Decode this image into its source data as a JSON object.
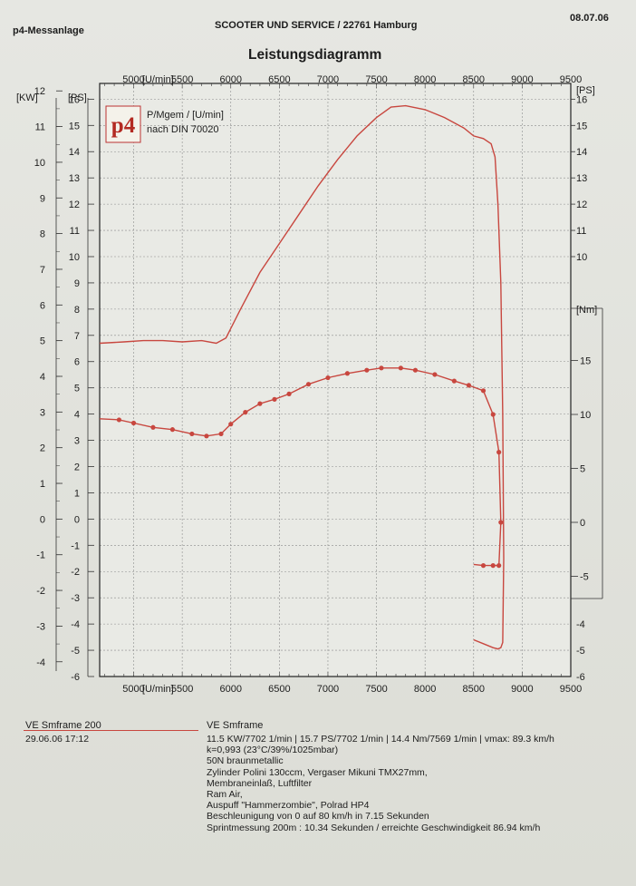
{
  "header": {
    "left": "p4-Messanlage",
    "center": "SCOOTER UND SERVICE / 22761 Hamburg",
    "date": "08.07.06",
    "title": "Leistungsdiagramm"
  },
  "legend_box": {
    "logo": "p4",
    "line1": "P/Mgem / [U/min]",
    "line2": "nach DIN 70020"
  },
  "chart_data": {
    "type": "line",
    "title": "Leistungsdiagramm",
    "x_unit_label": "[U/min]",
    "x_ticks": [
      5000,
      5500,
      6000,
      6500,
      7000,
      7500,
      8000,
      8500,
      9000,
      9500
    ],
    "xlim": [
      4650,
      9500
    ],
    "left_kw_label": "[KW]",
    "left_ps_label": "[PS]",
    "right_ps_label": "[PS]",
    "right_nm_label": "[Nm]",
    "kw_ticks": [
      12,
      11,
      10,
      9,
      8,
      7,
      6,
      5,
      4,
      3,
      2,
      1,
      0,
      -1,
      -2,
      -3,
      -4
    ],
    "ps_ticks": [
      16,
      15,
      14,
      13,
      12,
      11,
      10,
      9,
      8,
      7,
      6,
      5,
      4,
      3,
      2,
      1,
      0,
      -1,
      -2,
      -3,
      -4,
      -5,
      -6
    ],
    "right_ps_ticks": [
      16,
      15,
      14,
      13,
      12,
      11,
      10
    ],
    "nm_ticks": [
      15,
      10,
      5,
      0,
      -5
    ],
    "ps_lim": [
      -6,
      16.6
    ],
    "grid": true,
    "series": [
      {
        "role": "power",
        "unit": "PS",
        "color": "#c8473f",
        "x": [
          4650,
          4900,
          5100,
          5300,
          5500,
          5700,
          5850,
          5950,
          6100,
          6300,
          6500,
          6700,
          6900,
          7100,
          7300,
          7500,
          7650,
          7800,
          8000,
          8200,
          8400,
          8500,
          8600,
          8680,
          8720,
          8750,
          8780,
          8800,
          8810,
          8800,
          8780,
          8750,
          8700,
          8600,
          8500
        ],
        "y": [
          6.7,
          6.75,
          6.8,
          6.8,
          6.75,
          6.8,
          6.7,
          6.9,
          8.0,
          9.4,
          10.5,
          11.6,
          12.7,
          13.7,
          14.6,
          15.3,
          15.7,
          15.75,
          15.6,
          15.3,
          14.9,
          14.6,
          14.5,
          14.3,
          13.8,
          12.0,
          9.0,
          4.0,
          -1.5,
          -4.7,
          -4.9,
          -4.95,
          -4.9,
          -4.75,
          -4.6
        ]
      },
      {
        "role": "torque",
        "unit": "Nm",
        "color": "#c8473f",
        "x": [
          4650,
          4850,
          5000,
          5200,
          5400,
          5600,
          5750,
          5900,
          6000,
          6150,
          6300,
          6450,
          6600,
          6800,
          7000,
          7200,
          7400,
          7550,
          7750,
          7900,
          8100,
          8300,
          8450,
          8600,
          8700,
          8760,
          8780,
          8760,
          8700,
          8600,
          8500
        ],
        "y": [
          9.6,
          9.5,
          9.2,
          8.8,
          8.6,
          8.2,
          8.0,
          8.2,
          9.1,
          10.2,
          11.0,
          11.4,
          11.9,
          12.8,
          13.4,
          13.8,
          14.1,
          14.3,
          14.3,
          14.1,
          13.7,
          13.1,
          12.7,
          12.2,
          10.0,
          6.5,
          0.0,
          -4.0,
          -4.0,
          -4.0,
          -3.9
        ]
      }
    ],
    "bottom_x_label": "[U/min]"
  },
  "footer": {
    "name_left": "VE Smframe 200",
    "date_left": "29.06.06  17:12",
    "name_right": "VE Smframe",
    "lines": [
      "11.5 KW/7702 1/min  |  15.7 PS/7702 1/min  |  14.4 Nm/7569 1/min | vmax: 89.3 km/h",
      "k=0,993 (23°C/39%/1025mbar)",
      "50N braunmetallic",
      "Zylinder Polini 130ccm, Vergaser Mikuni TMX27mm,",
      "Membraneinlaß, Luftfilter",
      "Ram Air,",
      "Auspuff \"Hammerzombie\", Polrad HP4",
      "Beschleunigung von 0 auf 80 km/h in 7.15 Sekunden",
      "Sprintmessung 200m : 10.34 Sekunden / erreichte Geschwindigkeit 86.94 km/h"
    ]
  }
}
